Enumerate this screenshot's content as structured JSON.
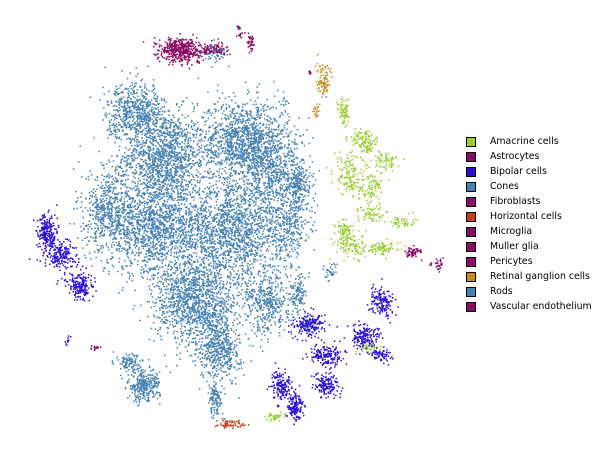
{
  "chart_data": {
    "type": "scatter",
    "title": "",
    "xlabel": "",
    "ylabel": "",
    "axes_visible": false,
    "grid": false,
    "legend_position": "right",
    "xlim": [
      -60,
      60
    ],
    "ylim": [
      -55,
      55
    ],
    "series": [
      {
        "name": "Amacrine cells",
        "color": "#9ACD32",
        "clusters": [
          [
            32,
            30,
            1.5,
            3.5,
            70
          ],
          [
            37,
            23,
            3,
            2,
            80
          ],
          [
            34,
            13,
            4,
            5,
            150
          ],
          [
            40,
            10,
            3,
            3,
            80
          ],
          [
            44,
            17,
            3,
            2,
            70
          ],
          [
            40,
            3,
            3,
            2,
            60
          ],
          [
            32,
            -1,
            2,
            2,
            60
          ],
          [
            34,
            -5,
            4,
            3,
            120
          ],
          [
            43,
            -6,
            4,
            1.5,
            80
          ],
          [
            49,
            1,
            3,
            1.5,
            50
          ],
          [
            39,
            -32,
            3,
            1.2,
            50
          ],
          [
            12,
            -50,
            2,
            1,
            40
          ],
          [
            39,
            21,
            2,
            1.5,
            40
          ]
        ]
      },
      {
        "name": "Astrocytes",
        "color": "#8B0A63",
        "clusters": [
          [
            -15,
            46,
            5,
            2.6,
            450
          ],
          [
            -6,
            46,
            4,
            1.5,
            120
          ],
          [
            5,
            48,
            0.8,
            2,
            40
          ],
          [
            52,
            -7,
            2,
            1.3,
            60
          ]
        ]
      },
      {
        "name": "Bipolar cells",
        "color": "#2A0FD4",
        "clusters": [
          [
            -54,
            -2,
            2.4,
            4,
            220
          ],
          [
            -50,
            -8,
            4,
            3.5,
            200
          ],
          [
            -44,
            -16,
            3,
            3,
            180
          ],
          [
            22,
            -26,
            4,
            2.5,
            180
          ],
          [
            27,
            -34,
            4,
            2.5,
            170
          ],
          [
            38,
            -29,
            4,
            2.6,
            170
          ],
          [
            43,
            -20,
            3,
            3,
            150
          ],
          [
            27,
            -42,
            3,
            2.5,
            150
          ],
          [
            14,
            -42,
            2.5,
            3.6,
            140
          ],
          [
            18,
            -47,
            2,
            3,
            150
          ],
          [
            43,
            -34,
            3,
            1.5,
            70
          ],
          [
            -48,
            -30,
            1,
            1,
            10
          ]
        ]
      },
      {
        "name": "Cones",
        "color": "#4682B4",
        "clusters": [
          [
            -5,
            45,
            2.5,
            2,
            40
          ],
          [
            15,
            33,
            0.5,
            2,
            10
          ]
        ]
      },
      {
        "name": "Fibroblasts",
        "color": "#8B0A63",
        "clusters": [
          [
            59,
            -10,
            1.5,
            1.2,
            30
          ]
        ]
      },
      {
        "name": "Horizontal cells",
        "color": "#C43E16",
        "clusters": [
          [
            -1,
            -52,
            3.5,
            0.8,
            60
          ]
        ]
      },
      {
        "name": "Microglia",
        "color": "#8B0A63",
        "clusters": [
          [
            2,
            50,
            1,
            0.5,
            10
          ]
        ]
      },
      {
        "name": "Muller glia",
        "color": "#8B0A63",
        "clusters": [
          [
            -40,
            -32,
            1,
            0.5,
            15
          ]
        ]
      },
      {
        "name": "Pericytes",
        "color": "#8B0A63",
        "clusters": [
          [
            1.5,
            52,
            0.5,
            0.5,
            8
          ]
        ]
      },
      {
        "name": "Retinal ganglion cells",
        "color": "#C88B1F",
        "clusters": [
          [
            26,
            38,
            2,
            3.5,
            90
          ],
          [
            24,
            30,
            1,
            1.5,
            20
          ]
        ]
      },
      {
        "name": "Rods",
        "color": "#4682B4",
        "clusters": [
          [
            -20,
            18,
            10,
            10,
            1300
          ],
          [
            3,
            22,
            11,
            9,
            1300
          ],
          [
            -22,
            -1,
            13,
            10,
            1500
          ],
          [
            0,
            -1,
            12,
            12,
            1500
          ],
          [
            -11,
            -20,
            10,
            9,
            1200
          ],
          [
            -4,
            -32,
            5,
            7,
            500
          ],
          [
            -5,
            -45,
            2,
            4,
            120
          ],
          [
            12,
            14,
            7,
            9,
            500
          ],
          [
            -26,
            -42,
            4,
            3.5,
            300
          ],
          [
            -30,
            -36,
            3,
            2,
            100
          ],
          [
            -28,
            30,
            7,
            6,
            600
          ],
          [
            -36,
            4,
            6,
            9,
            500
          ],
          [
            10,
            -20,
            6,
            7,
            400
          ],
          [
            16,
            0,
            5,
            8,
            300
          ],
          [
            19,
            10,
            3,
            5,
            200
          ],
          [
            19,
            -18,
            2,
            4,
            120
          ],
          [
            21,
            -26,
            1.5,
            1.5,
            25
          ],
          [
            28,
            -12,
            1.5,
            2,
            30
          ]
        ]
      },
      {
        "name": "Vascular endothelium",
        "color": "#8B0A63",
        "clusters": [
          [
            22,
            40,
            0.6,
            0.6,
            6
          ]
        ]
      }
    ]
  }
}
